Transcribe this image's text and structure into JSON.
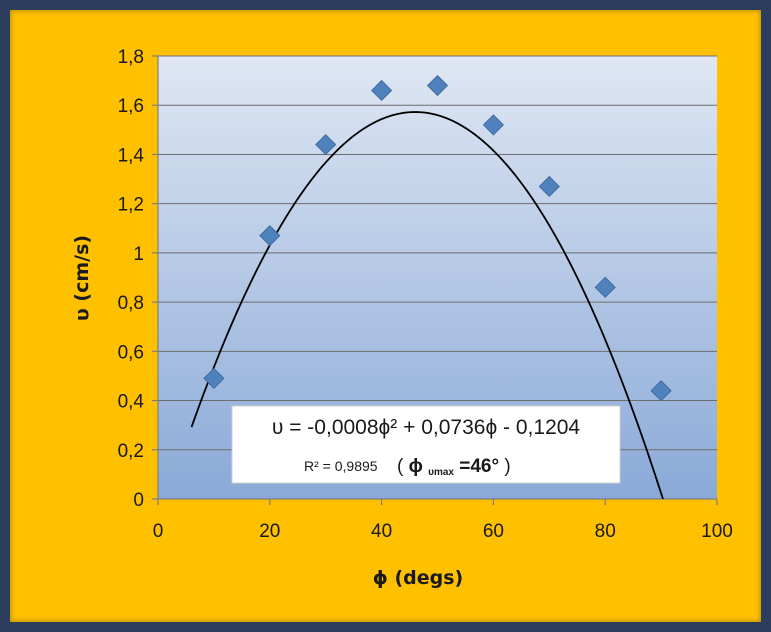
{
  "colors": {
    "frame": "#2c3e5c",
    "chart_area": "#ffc000",
    "plot_top": "#dfe7f3",
    "plot_bottom": "#8aa9d8",
    "marker": "#4f81bd",
    "curve": "#000000",
    "grid": "#6d6d6d"
  },
  "chart_data": {
    "type": "scatter",
    "xlabel": "ϕ (degs)",
    "ylabel": "υ (cm/s)",
    "xlim": [
      0,
      100
    ],
    "ylim": [
      0,
      1.8
    ],
    "x_ticks": [
      "0",
      "20",
      "40",
      "60",
      "80",
      "100"
    ],
    "y_ticks": [
      "0",
      "0,2",
      "0,4",
      "0,6",
      "0,8",
      "1",
      "1,2",
      "1,4",
      "1,6",
      "1,8"
    ],
    "grid": "horizontal",
    "marker": "diamond",
    "points": [
      {
        "x": 10,
        "y": 0.49
      },
      {
        "x": 20,
        "y": 1.07
      },
      {
        "x": 30,
        "y": 1.44
      },
      {
        "x": 40,
        "y": 1.66
      },
      {
        "x": 50,
        "y": 1.68
      },
      {
        "x": 60,
        "y": 1.52
      },
      {
        "x": 70,
        "y": 1.27
      },
      {
        "x": 80,
        "y": 0.86
      },
      {
        "x": 90,
        "y": 0.44
      }
    ],
    "trendline": {
      "type": "polynomial",
      "order": 2,
      "coefficients": [
        -0.0008,
        0.0736,
        -0.1204
      ],
      "x_range": [
        6,
        94
      ]
    },
    "annotation": {
      "equation": "υ = -0,0008ϕ² + 0,0736ϕ - 0,1204",
      "r2": "R² = 0,9895",
      "phi_max_open": "(",
      "phi_max_symbol": "ϕ",
      "phi_max_subscript": "υmax",
      "phi_max_value": "=46°",
      "phi_max_close": ")"
    }
  }
}
